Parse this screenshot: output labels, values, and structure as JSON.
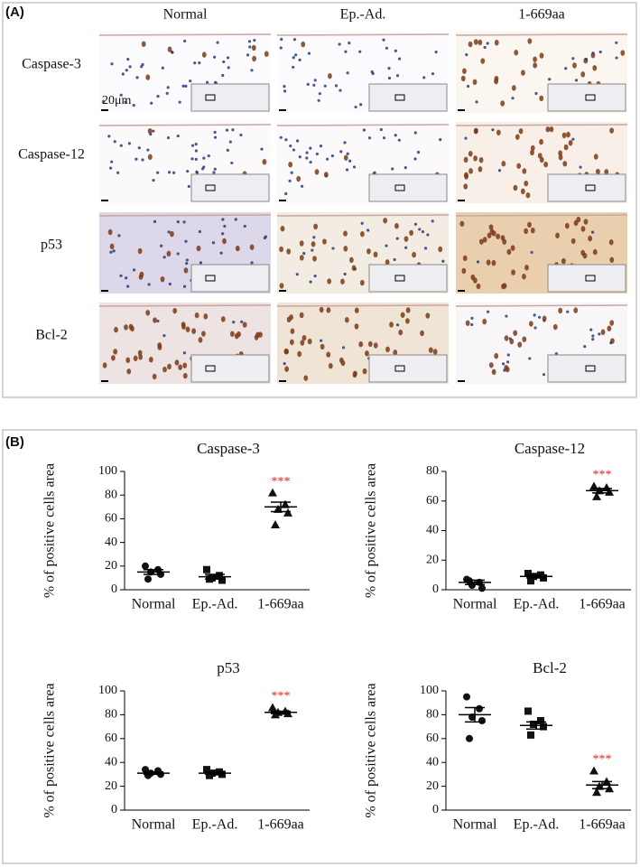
{
  "panel_a": {
    "label": "(A)",
    "columns": [
      "Normal",
      "Ep.-Ad.",
      "1-669aa"
    ],
    "rows": [
      "Caspase-3",
      "Caspase-12",
      "p53",
      "Bcl-2"
    ],
    "scale_bar": "20μm"
  },
  "panel_b": {
    "label": "(B)"
  },
  "chart_data": [
    {
      "type": "dotplot",
      "title": "Caspase-3",
      "y_label": "% of positive cells area",
      "categories": [
        "Normal",
        "Ep.-Ad.",
        "1-669aa"
      ],
      "points": [
        [
          20,
          17,
          15,
          13,
          9
        ],
        [
          17,
          12,
          10,
          8,
          9
        ],
        [
          82,
          72,
          68,
          65,
          55
        ]
      ],
      "mean": [
        15,
        11,
        70
      ],
      "sem": [
        2,
        2,
        4
      ],
      "markers": [
        "circle",
        "square",
        "triangle"
      ],
      "annotations": [
        null,
        null,
        "***"
      ],
      "annotation_color": "#e02020",
      "color": "#111111",
      "ylim": [
        0,
        100
      ],
      "yticks": [
        0,
        20,
        40,
        60,
        80,
        100
      ]
    },
    {
      "type": "dotplot",
      "title": "Caspase-12",
      "y_label": "% of positive cells area",
      "categories": [
        "Normal",
        "Ep.-Ad.",
        "1-669aa"
      ],
      "points": [
        [
          7,
          5,
          3,
          1,
          6
        ],
        [
          11,
          10,
          9,
          8,
          6
        ],
        [
          70,
          69,
          67,
          66,
          63
        ]
      ],
      "mean": [
        5,
        9,
        67
      ],
      "sem": [
        1.5,
        1,
        1.5
      ],
      "markers": [
        "circle",
        "square",
        "triangle"
      ],
      "annotations": [
        null,
        null,
        "***"
      ],
      "annotation_color": "#e02020",
      "color": "#111111",
      "ylim": [
        0,
        80
      ],
      "yticks": [
        0,
        20,
        40,
        60,
        80
      ]
    },
    {
      "type": "dotplot",
      "title": "p53",
      "y_label": "% of positive cells area",
      "categories": [
        "Normal",
        "Ep.-Ad.",
        "1-669aa"
      ],
      "points": [
        [
          34,
          33,
          31,
          30,
          29
        ],
        [
          34,
          32,
          31,
          30,
          29
        ],
        [
          86,
          83,
          82,
          81,
          80
        ]
      ],
      "mean": [
        31,
        31,
        82
      ],
      "sem": [
        1,
        1,
        1
      ],
      "markers": [
        "circle",
        "square",
        "triangle"
      ],
      "annotations": [
        null,
        null,
        "***"
      ],
      "annotation_color": "#e02020",
      "color": "#111111",
      "ylim": [
        0,
        100
      ],
      "yticks": [
        0,
        20,
        40,
        60,
        80,
        100
      ]
    },
    {
      "type": "dotplot",
      "title": "Bcl-2",
      "y_label": "% of positive cells area",
      "categories": [
        "Normal",
        "Ep.-Ad.",
        "1-669aa"
      ],
      "points": [
        [
          95,
          85,
          78,
          75,
          60
        ],
        [
          83,
          75,
          72,
          70,
          63
        ],
        [
          33,
          24,
          20,
          18,
          15
        ]
      ],
      "mean": [
        80,
        71,
        21
      ],
      "sem": [
        6,
        3,
        3
      ],
      "markers": [
        "circle",
        "square",
        "triangle"
      ],
      "annotations": [
        null,
        null,
        "***"
      ],
      "annotation_color": "#e02020",
      "color": "#111111",
      "ylim": [
        0,
        100
      ],
      "yticks": [
        0,
        20,
        40,
        60,
        80,
        100
      ]
    }
  ]
}
